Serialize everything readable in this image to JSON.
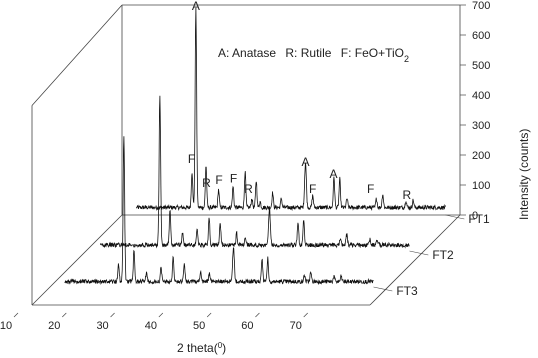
{
  "chart_data": {
    "type": "line",
    "title": "",
    "legend_text": {
      "part1": "A: Anatase",
      "part2": "R: Rutile",
      "part3_prefix": "F: FeO+TiO",
      "part3_sub": "2"
    },
    "xlabel": {
      "text": "2 theta(",
      "sup": "0",
      "close": ")"
    },
    "ylabel": "Intensity (counts)",
    "xlim": [
      10,
      80
    ],
    "ylim": [
      0,
      700
    ],
    "x_ticks": [
      10,
      20,
      30,
      40,
      50,
      60,
      70
    ],
    "y_ticks": [
      0,
      100,
      200,
      300,
      400,
      500,
      600,
      700
    ],
    "series": [
      {
        "name": "FT1",
        "baseline": 25,
        "peaks": [
          {
            "x": 25.3,
            "y": 660,
            "w": 0.22
          },
          {
            "x": 24.5,
            "y": 120,
            "w": 0.2
          },
          {
            "x": 27.4,
            "y": 140,
            "w": 0.2
          },
          {
            "x": 30.0,
            "y": 60,
            "w": 0.2
          },
          {
            "x": 33.0,
            "y": 70,
            "w": 0.2
          },
          {
            "x": 35.5,
            "y": 120,
            "w": 0.2
          },
          {
            "x": 36.9,
            "y": 30,
            "w": 0.2
          },
          {
            "x": 37.8,
            "y": 90,
            "w": 0.2
          },
          {
            "x": 38.6,
            "y": 20,
            "w": 0.2
          },
          {
            "x": 41.2,
            "y": 50,
            "w": 0.2
          },
          {
            "x": 43.0,
            "y": 30,
            "w": 0.2
          },
          {
            "x": 48.0,
            "y": 150,
            "w": 0.25
          },
          {
            "x": 49.5,
            "y": 40,
            "w": 0.2
          },
          {
            "x": 53.9,
            "y": 100,
            "w": 0.2
          },
          {
            "x": 55.1,
            "y": 95,
            "w": 0.2
          },
          {
            "x": 56.6,
            "y": 30,
            "w": 0.2
          },
          {
            "x": 62.7,
            "y": 30,
            "w": 0.2
          },
          {
            "x": 64.0,
            "y": 45,
            "w": 0.2
          },
          {
            "x": 68.8,
            "y": 25,
            "w": 0.2
          },
          {
            "x": 70.3,
            "y": 25,
            "w": 0.2
          }
        ],
        "raw_x_offset": [
          {
            "x": 26.8,
            "y": 40
          },
          {
            "x": 31.5,
            "y": 25
          }
        ]
      },
      {
        "name": "FT2",
        "baseline": 20,
        "peaks": [
          {
            "x": 25.3,
            "y": 500,
            "w": 0.22
          },
          {
            "x": 27.4,
            "y": 120,
            "w": 0.2
          },
          {
            "x": 30.0,
            "y": 40,
            "w": 0.2
          },
          {
            "x": 33.0,
            "y": 55,
            "w": 0.2
          },
          {
            "x": 35.5,
            "y": 90,
            "w": 0.2
          },
          {
            "x": 37.8,
            "y": 70,
            "w": 0.2
          },
          {
            "x": 41.2,
            "y": 40,
            "w": 0.2
          },
          {
            "x": 43.0,
            "y": 25,
            "w": 0.2
          },
          {
            "x": 48.0,
            "y": 120,
            "w": 0.25
          },
          {
            "x": 53.9,
            "y": 80,
            "w": 0.2
          },
          {
            "x": 55.1,
            "y": 85,
            "w": 0.2
          },
          {
            "x": 62.7,
            "y": 25,
            "w": 0.2
          },
          {
            "x": 64.0,
            "y": 35,
            "w": 0.2
          },
          {
            "x": 68.8,
            "y": 20,
            "w": 0.2
          },
          {
            "x": 70.3,
            "y": 20,
            "w": 0.2
          }
        ]
      },
      {
        "name": "FT3",
        "baseline": 18,
        "peaks": [
          {
            "x": 25.3,
            "y": 480,
            "w": 0.22
          },
          {
            "x": 24.2,
            "y": 60,
            "w": 0.2
          },
          {
            "x": 27.4,
            "y": 110,
            "w": 0.2
          },
          {
            "x": 30.0,
            "y": 35,
            "w": 0.2
          },
          {
            "x": 33.0,
            "y": 45,
            "w": 0.2
          },
          {
            "x": 35.5,
            "y": 80,
            "w": 0.2
          },
          {
            "x": 37.8,
            "y": 60,
            "w": 0.2
          },
          {
            "x": 41.2,
            "y": 35,
            "w": 0.2
          },
          {
            "x": 43.0,
            "y": 25,
            "w": 0.2
          },
          {
            "x": 48.0,
            "y": 110,
            "w": 0.25
          },
          {
            "x": 53.9,
            "y": 75,
            "w": 0.2
          },
          {
            "x": 55.1,
            "y": 80,
            "w": 0.2
          },
          {
            "x": 62.7,
            "y": 22,
            "w": 0.2
          },
          {
            "x": 64.0,
            "y": 30,
            "w": 0.2
          },
          {
            "x": 68.8,
            "y": 18,
            "w": 0.2
          },
          {
            "x": 70.3,
            "y": 18,
            "w": 0.2
          }
        ]
      }
    ],
    "annotations": [
      {
        "text": "A",
        "x": 25.3,
        "y": 670
      },
      {
        "text": "F",
        "x": 24.4,
        "y": 160
      },
      {
        "text": "F",
        "x": 30.1,
        "y": 90
      },
      {
        "text": "R",
        "x": 27.5,
        "y": 80
      },
      {
        "text": "F",
        "x": 33.1,
        "y": 95
      },
      {
        "text": "R",
        "x": 36.2,
        "y": 60
      },
      {
        "text": "A",
        "x": 48.0,
        "y": 150
      },
      {
        "text": "A",
        "x": 53.8,
        "y": 110
      },
      {
        "text": "F",
        "x": 49.5,
        "y": 60
      },
      {
        "text": "F",
        "x": 61.5,
        "y": 60
      },
      {
        "text": "R",
        "x": 69.0,
        "y": 40
      }
    ],
    "grid": false,
    "legend": "top-right"
  }
}
